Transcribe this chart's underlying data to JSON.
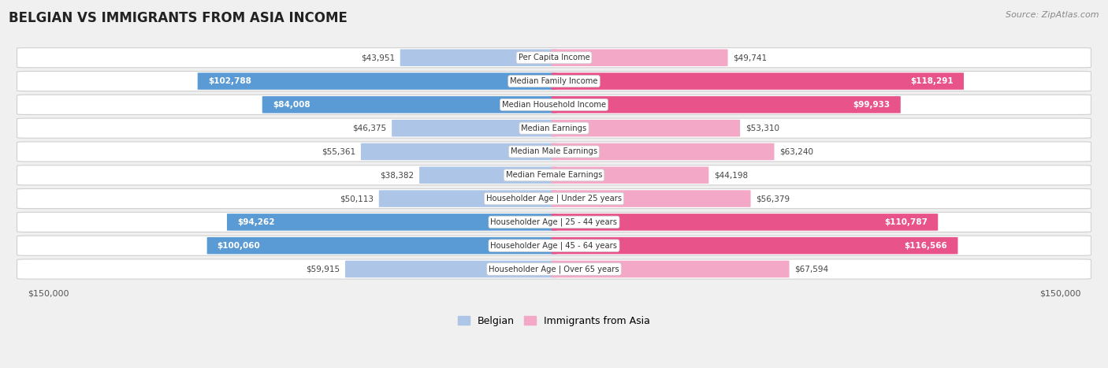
{
  "title": "BELGIAN VS IMMIGRANTS FROM ASIA INCOME",
  "source": "Source: ZipAtlas.com",
  "categories": [
    "Per Capita Income",
    "Median Family Income",
    "Median Household Income",
    "Median Earnings",
    "Median Male Earnings",
    "Median Female Earnings",
    "Householder Age | Under 25 years",
    "Householder Age | 25 - 44 years",
    "Householder Age | 45 - 64 years",
    "Householder Age | Over 65 years"
  ],
  "belgian_values": [
    43951,
    102788,
    84008,
    46375,
    55361,
    38382,
    50113,
    94262,
    100060,
    59915
  ],
  "immigrant_values": [
    49741,
    118291,
    99933,
    53310,
    63240,
    44198,
    56379,
    110787,
    116566,
    67594
  ],
  "belgian_labels": [
    "$43,951",
    "$102,788",
    "$84,008",
    "$46,375",
    "$55,361",
    "$38,382",
    "$50,113",
    "$94,262",
    "$100,060",
    "$59,915"
  ],
  "immigrant_labels": [
    "$49,741",
    "$118,291",
    "$99,933",
    "$53,310",
    "$63,240",
    "$44,198",
    "$56,379",
    "$110,787",
    "$116,566",
    "$67,594"
  ],
  "belgian_color_light": "#adc6e8",
  "belgian_color_dark": "#5b9bd5",
  "immigrant_color_light": "#f4a8c7",
  "immigrant_color_dark": "#e8538a",
  "max_value": 150000,
  "label_inside_threshold": 70000,
  "row_colors": [
    "#f5f5f5",
    "#ebebeb"
  ],
  "fig_bg": "#f0f0f0"
}
